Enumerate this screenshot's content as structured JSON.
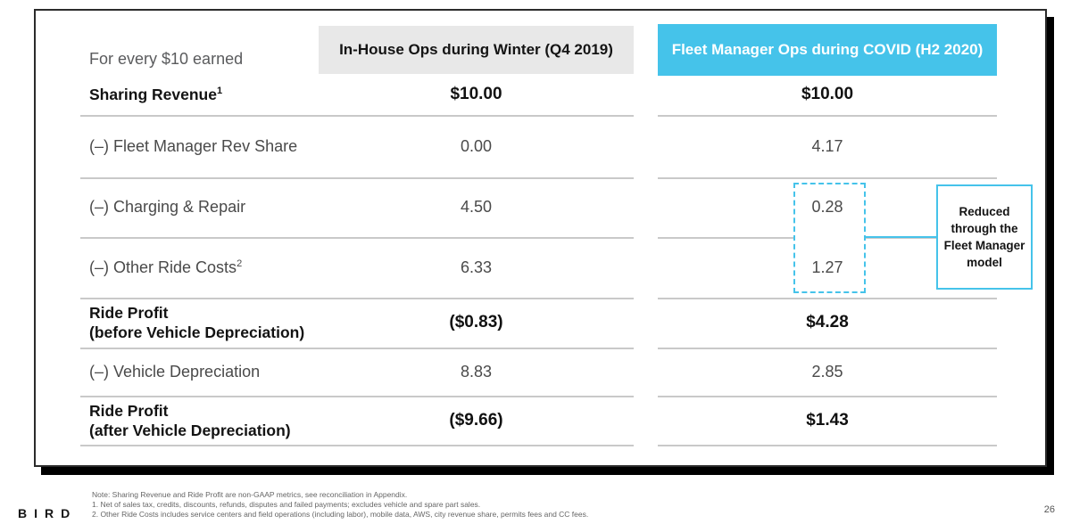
{
  "slide": {
    "logo_text": "BIRD",
    "page_number": "26"
  },
  "table": {
    "corner_label": "For every $10 earned",
    "col1_header": "In-House Ops during Winter (Q4 2019)",
    "col2_header": "Fleet Manager Ops during COVID (H2 2020)",
    "rows": [
      {
        "label": "Sharing Revenue",
        "sup": "1",
        "label2": "",
        "col1": "$10.00",
        "col2": "$10.00"
      },
      {
        "label": "(–) Fleet Manager Rev Share",
        "sup": "",
        "label2": "",
        "col1": "0.00",
        "col2": "4.17"
      },
      {
        "label": "(–) Charging & Repair",
        "sup": "",
        "label2": "",
        "col1": "4.50",
        "col2": "0.28"
      },
      {
        "label": "(–) Other Ride Costs",
        "sup": "2",
        "label2": "",
        "col1": "6.33",
        "col2": "1.27"
      },
      {
        "label": "Ride Profit",
        "sup": "",
        "label2": "(before Vehicle Depreciation)",
        "col1": "($0.83)",
        "col2": "$4.28"
      },
      {
        "label": "(–) Vehicle Depreciation",
        "sup": "",
        "label2": "",
        "col1": "8.83",
        "col2": "2.85"
      },
      {
        "label": "Ride Profit",
        "sup": "",
        "label2": "(after Vehicle Depreciation)",
        "col1": "($9.66)",
        "col2": "$1.43"
      }
    ],
    "callout_text": "Reduced through the Fleet Manager model"
  },
  "footnotes": [
    "Note: Sharing Revenue and Ride Profit are non-GAAP metrics, see reconciliation in Appendix.",
    "1. Net of sales tax, credits, discounts, refunds, disputes and failed payments; excludes vehicle and spare part sales.",
    "2. Other Ride Costs includes service centers and field operations (including labor), mobile data, AWS, city revenue share, permits fees and CC fees."
  ],
  "colors": {
    "accent_cyan": "#45c3ea",
    "header_gray": "#e8e8e8",
    "shadow_black": "#000000",
    "divider_gray": "#c9c9c9"
  }
}
